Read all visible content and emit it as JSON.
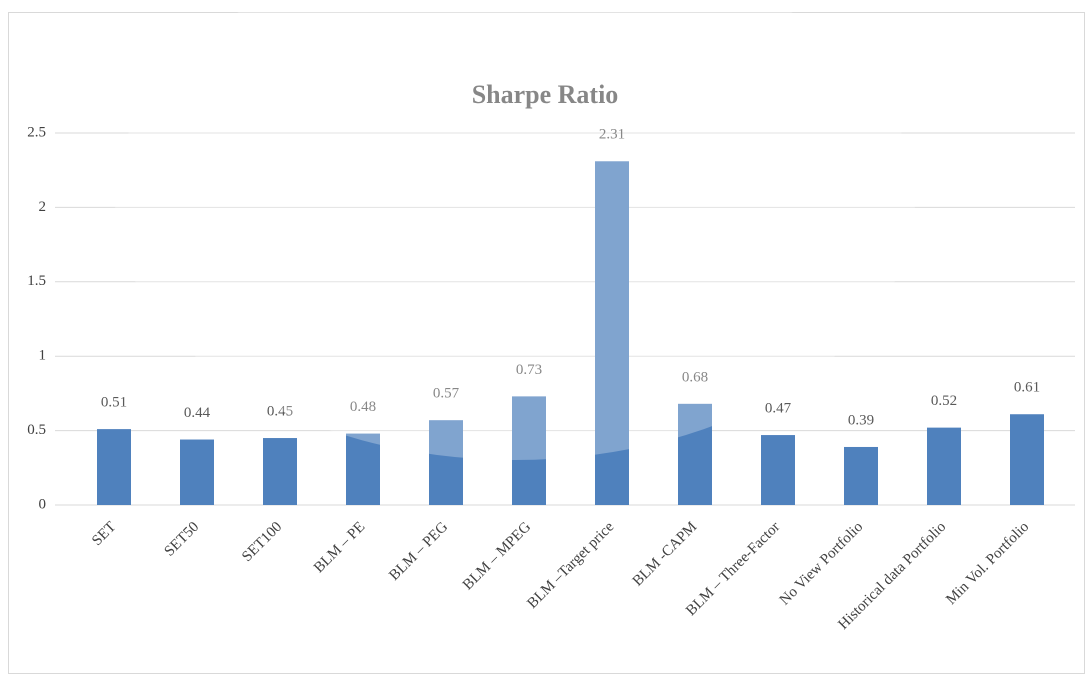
{
  "chart_data": {
    "type": "bar",
    "title": "Sharpe Ratio",
    "categories": [
      "SET",
      "SET50",
      "SET100",
      "BLM – PE",
      "BLM – PEG",
      "BLM – MPEG",
      "BLM –Target price",
      "BLM -CAPM",
      "BLM – Three-Factor",
      "No View  Portfolio",
      "Historical data Portfolio",
      "Min Vol.  Portfolio"
    ],
    "values": [
      0.51,
      0.44,
      0.45,
      0.48,
      0.57,
      0.73,
      2.31,
      0.68,
      0.47,
      0.39,
      0.52,
      0.61
    ],
    "color": "#4f81bd",
    "ylim": [
      0,
      2.5
    ],
    "yticks": [
      0,
      0.5,
      1,
      1.5,
      2,
      2.5
    ],
    "grid": true
  }
}
